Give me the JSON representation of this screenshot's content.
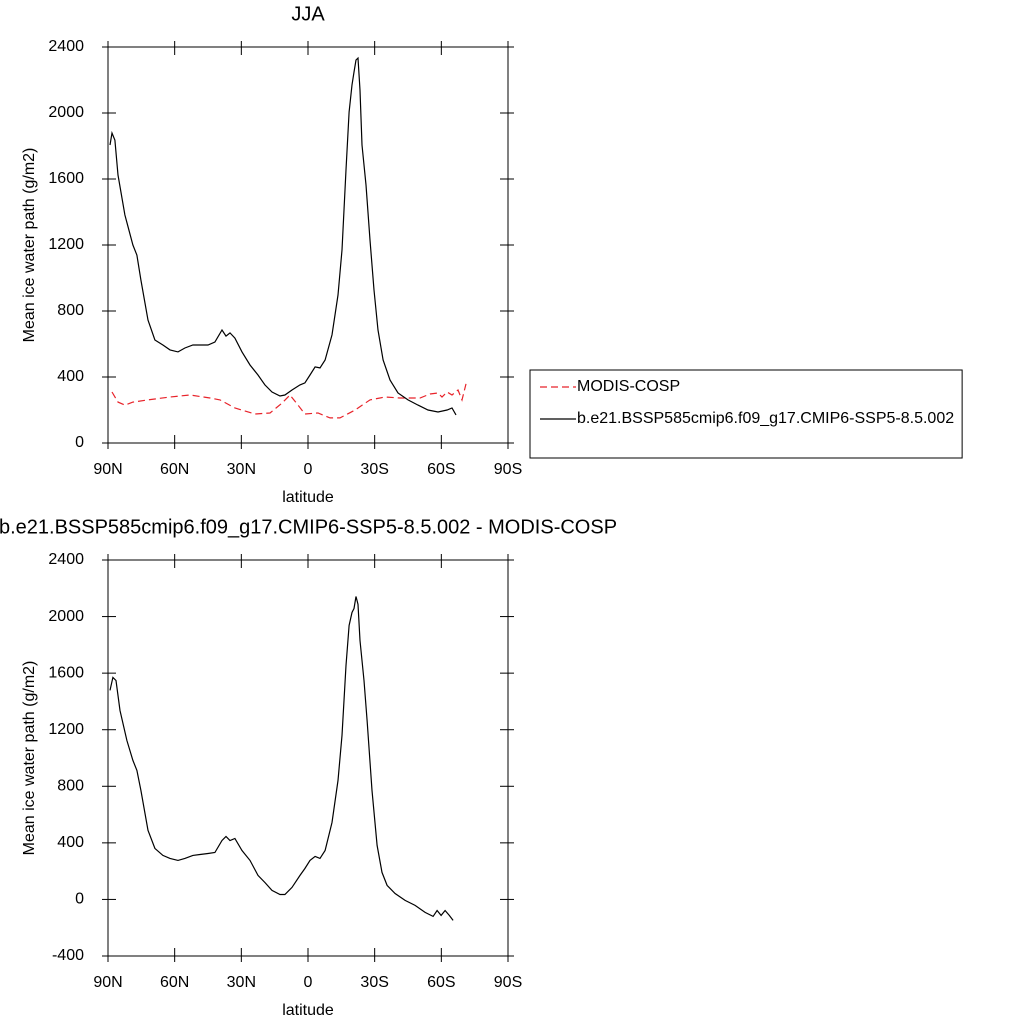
{
  "chart_data": [
    {
      "type": "line",
      "title": "JJA",
      "xlabel": "latitude",
      "ylabel": "Mean ice water path (g/m2)",
      "xlim": [
        90,
        -90
      ],
      "ylim": [
        0,
        2400
      ],
      "xticks": [
        {
          "value": 90,
          "label": "90N"
        },
        {
          "value": 60,
          "label": "60N"
        },
        {
          "value": 30,
          "label": "30N"
        },
        0,
        {
          "value": -30,
          "label": "30S"
        },
        {
          "value": -60,
          "label": "60S"
        },
        {
          "value": -90,
          "label": "90S"
        }
      ],
      "yticks": [
        0,
        400,
        800,
        1200,
        1600,
        2000,
        2400
      ],
      "legend": "right",
      "series": [
        {
          "name": "MODIS-COSP",
          "color": "#e8232a",
          "dash": true,
          "x": [
            88.2,
            85.5,
            82.4,
            78.8,
            72,
            62.1,
            53.1,
            44.1,
            39.6,
            32.9,
            23.9,
            17.1,
            11.7,
            8.1,
            4.5,
            1.4,
            -4.5,
            -9.9,
            -14.4,
            -21.2,
            -27.9,
            -34.7,
            -41.4,
            -50.4,
            -54.9,
            -58.5,
            -60.3,
            -62.6,
            -64.8,
            -67.5,
            -69.3,
            -71.1
          ],
          "values": [
            309,
            248,
            230,
            248,
            261,
            279,
            291,
            273,
            261,
            212,
            176,
            182,
            242,
            291,
            230,
            176,
            182,
            152,
            152,
            200,
            261,
            279,
            273,
            273,
            297,
            303,
            279,
            309,
            291,
            321,
            261,
            358
          ]
        },
        {
          "name": "b.e21.BSSP585cmip6.f09_g17.CMIP6-SSP5-8.5.002",
          "color": "#000000",
          "dash": false,
          "x": [
            89.1,
            88.2,
            86.9,
            85.5,
            82.4,
            78.8,
            77,
            75.2,
            72,
            68.9,
            65.3,
            62.1,
            58.5,
            55.4,
            51.8,
            48.6,
            45,
            41.9,
            38.7,
            36.9,
            35.1,
            32.9,
            29.7,
            26.1,
            22.5,
            19.4,
            16.2,
            12.6,
            10.4,
            7.2,
            3.6,
            1.4,
            -0.9,
            -3.2,
            -5.4,
            -7.7,
            -10.8,
            -13.5,
            -15.3,
            -17.1,
            -18.5,
            -19.8,
            -20.7,
            -21.6,
            -22.5,
            -23.4,
            -24.3,
            -26.1,
            -27.9,
            -29.7,
            -31.5,
            -33.8,
            -36.9,
            -40.5,
            -45,
            -49.5,
            -54,
            -58.5,
            -62.6,
            -64.8,
            -66.6
          ],
          "values": [
            1806,
            1879,
            1836,
            1624,
            1382,
            1200,
            1139,
            988,
            745,
            624,
            594,
            564,
            552,
            576,
            594,
            594,
            594,
            612,
            685,
            648,
            667,
            636,
            552,
            473,
            412,
            352,
            309,
            285,
            291,
            321,
            352,
            364,
            412,
            461,
            455,
            503,
            655,
            897,
            1170,
            1655,
            2006,
            2170,
            2248,
            2321,
            2333,
            2139,
            1806,
            1564,
            1230,
            927,
            685,
            503,
            382,
            303,
            261,
            230,
            200,
            188,
            200,
            212,
            170
          ]
        }
      ]
    },
    {
      "type": "line",
      "title": "b.e21.BSSP585cmip6.f09_g17.CMIP6-SSP5-8.5.002 - MODIS-COSP",
      "xlabel": "latitude",
      "ylabel": "Mean ice water path (g/m2)",
      "xlim": [
        90,
        -90
      ],
      "ylim": [
        -400,
        2400
      ],
      "xticks": [
        {
          "value": 90,
          "label": "90N"
        },
        {
          "value": 60,
          "label": "60N"
        },
        {
          "value": 30,
          "label": "30N"
        },
        0,
        {
          "value": -30,
          "label": "30S"
        },
        {
          "value": -60,
          "label": "60S"
        },
        {
          "value": -90,
          "label": "90S"
        }
      ],
      "yticks": [
        -400,
        0,
        400,
        800,
        1200,
        1600,
        2000,
        2400
      ],
      "series": [
        {
          "color": "#000000",
          "dash": false,
          "x": [
            89.1,
            87.8,
            86.4,
            84.6,
            81.5,
            78.8,
            77,
            75.2,
            72,
            68.9,
            65.3,
            62.1,
            58.5,
            55.4,
            51.8,
            48.6,
            45,
            41.9,
            38.7,
            36.9,
            35.1,
            32.9,
            29.7,
            26.1,
            22.5,
            19.4,
            16.2,
            12.6,
            10.4,
            7.2,
            3.6,
            1.4,
            -0.9,
            -3.2,
            -5.4,
            -7.7,
            -10.8,
            -13.5,
            -15.3,
            -17.1,
            -18.5,
            -19.8,
            -20.7,
            -21.6,
            -22.5,
            -23.4,
            -25.2,
            -26.6,
            -28.8,
            -31.1,
            -33.3,
            -35.6,
            -39.2,
            -43.7,
            -48.2,
            -52.7,
            -56.3,
            -58.1,
            -59.9,
            -61.7,
            -63.6,
            -65.3
          ],
          "values": [
            1478,
            1570,
            1548,
            1336,
            1124,
            983,
            912,
            771,
            488,
            361,
            311,
            290,
            276,
            290,
            311,
            318,
            325,
            332,
            417,
            445,
            417,
            431,
            346,
            276,
            170,
            120,
            64,
            35,
            35,
            85,
            170,
            219,
            276,
            304,
            290,
            346,
            544,
            841,
            1160,
            1654,
            1937,
            2029,
            2057,
            2142,
            2086,
            1831,
            1548,
            1265,
            771,
            382,
            191,
            99,
            42,
            -7,
            -42,
            -92,
            -120,
            -78,
            -113,
            -78,
            -113,
            -148
          ]
        }
      ]
    }
  ]
}
